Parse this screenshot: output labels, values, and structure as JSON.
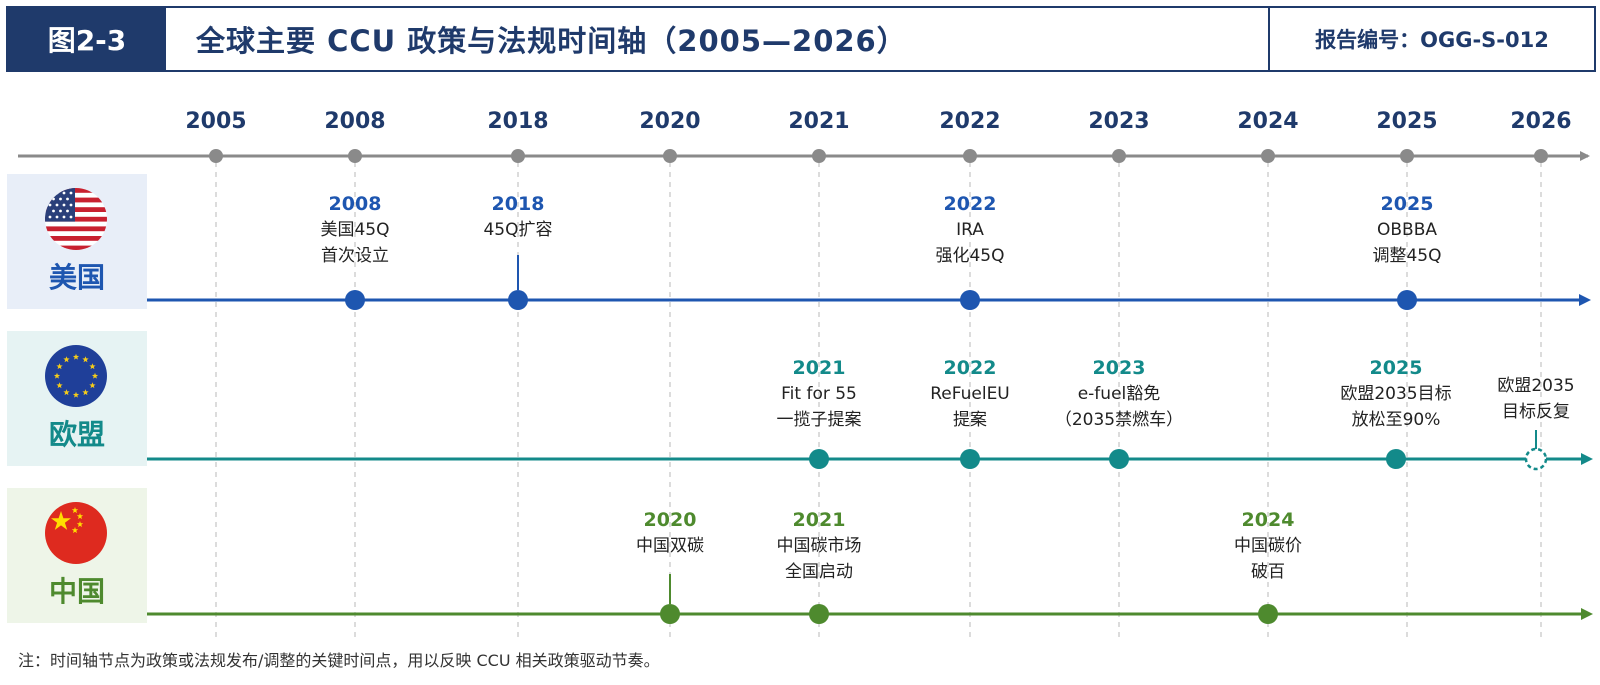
{
  "header": {
    "figure_tag": "图2-3",
    "title": "全球主要 CCU 政策与法规时间轴（2005—2026）",
    "report_id": "报告编号：OGG-S-012"
  },
  "timeline_years": [
    "2005",
    "2008",
    "2018",
    "2020",
    "2021",
    "2022",
    "2023",
    "2024",
    "2025",
    "2026"
  ],
  "regions": {
    "us": {
      "label": "美国",
      "flag": "us-flag-icon",
      "color": "#1e56b0",
      "events": [
        {
          "year": "2008",
          "lines": [
            "美国45Q",
            "首次设立"
          ]
        },
        {
          "year": "2018",
          "lines": [
            "45Q扩容"
          ]
        },
        {
          "year": "2022",
          "lines": [
            "IRA",
            "强化45Q"
          ]
        },
        {
          "year": "2025",
          "lines": [
            "OBBBA",
            "调整45Q"
          ]
        }
      ]
    },
    "eu": {
      "label": "欧盟",
      "flag": "eu-flag-icon",
      "color": "#138a8a",
      "events": [
        {
          "year": "2021",
          "lines": [
            "Fit for 55",
            "一揽子提案"
          ]
        },
        {
          "year": "2022",
          "lines": [
            "ReFuelEU",
            "提案"
          ]
        },
        {
          "year": "2023",
          "lines": [
            "e-fuel豁免",
            "（2035禁燃车）"
          ]
        },
        {
          "year": "2025",
          "lines": [
            "欧盟2035目标",
            "放松至90%"
          ]
        },
        {
          "year": "",
          "lines": [
            "欧盟2035",
            "目标反复"
          ],
          "status": "anticipated"
        }
      ]
    },
    "cn": {
      "label": "中国",
      "flag": "cn-flag-icon",
      "color": "#4e8a2e",
      "events": [
        {
          "year": "2020",
          "lines": [
            "中国双碳"
          ]
        },
        {
          "year": "2021",
          "lines": [
            "中国碳市场",
            "全国启动"
          ]
        },
        {
          "year": "2024",
          "lines": [
            "中国碳价",
            "破百"
          ]
        }
      ]
    }
  },
  "footnote": "注：时间轴节点为政策或法规发布/调整的关键时间点，用以反映 CCU 相关政策驱动节奏。",
  "colors": {
    "header_navy": "#1f3a6b",
    "axis_gray": "#8a8a8a",
    "us_blue": "#1e56b0",
    "eu_teal": "#138a8a",
    "cn_green": "#4e8a2e"
  }
}
